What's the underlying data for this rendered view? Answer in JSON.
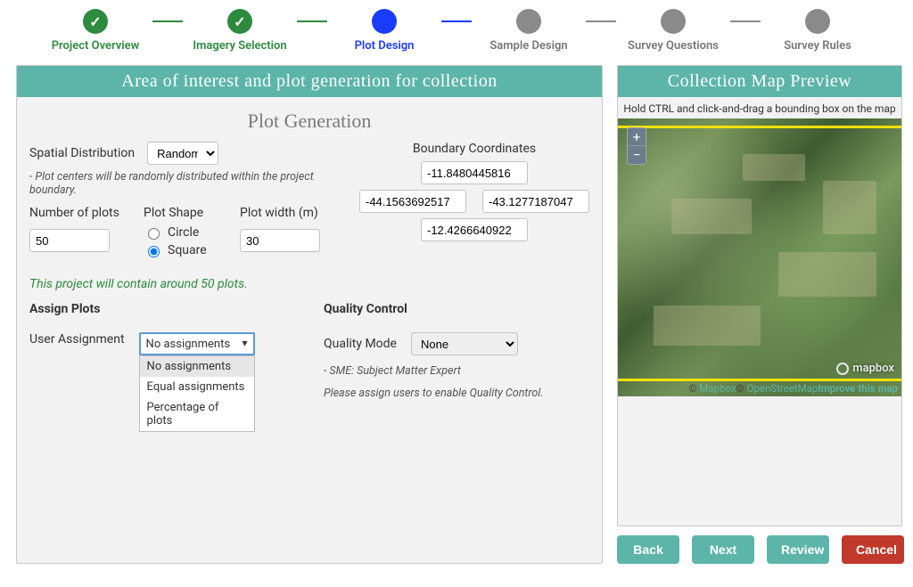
{
  "colors": {
    "done": "#2d8a3e",
    "active": "#1a3cff",
    "pending": "#8a8a8a",
    "teal": "#5cb5a8",
    "red": "#c0392b",
    "yellow": "#ffe100"
  },
  "stepper": {
    "steps": [
      {
        "label": "Project Overview",
        "state": "done"
      },
      {
        "label": "Imagery Selection",
        "state": "done"
      },
      {
        "label": "Plot Design",
        "state": "active"
      },
      {
        "label": "Sample Design",
        "state": "pending"
      },
      {
        "label": "Survey Questions",
        "state": "pending"
      },
      {
        "label": "Survey Rules",
        "state": "pending"
      }
    ]
  },
  "leftPanel": {
    "header": "Area of interest and plot generation for collection",
    "sectionTitle": "Plot Generation",
    "spatial": {
      "label": "Spatial Distribution",
      "value": "Random",
      "hint": "- Plot centers will be randomly distributed within the project boundary."
    },
    "numPlots": {
      "label": "Number of plots",
      "value": "50"
    },
    "plotShape": {
      "label": "Plot Shape",
      "options": [
        {
          "label": "Circle",
          "checked": false
        },
        {
          "label": "Square",
          "checked": true
        }
      ]
    },
    "plotWidth": {
      "label": "Plot width (m)",
      "value": "30"
    },
    "boundary": {
      "label": "Boundary Coordinates",
      "north": "-11.8480445816",
      "west": "-44.1563692517",
      "east": "-43.1277187047",
      "south": "-12.4266640922"
    },
    "plotCountHint": "This project will contain around 50 plots.",
    "assign": {
      "heading": "Assign Plots",
      "label": "User Assignment",
      "selected": "No assignments",
      "options": [
        "No assignments",
        "Equal assignments",
        "Percentage of plots"
      ],
      "highlightIndex": 0
    },
    "qc": {
      "heading": "Quality Control",
      "label": "Quality Mode",
      "value": "None",
      "sme": "- SME: Subject Matter Expert",
      "note": "Please assign users to enable Quality Control."
    }
  },
  "rightPanel": {
    "header": "Collection Map Preview",
    "hint": "Hold CTRL and click-and-drag a bounding box on the map",
    "zoom": {
      "in": "+",
      "out": "−"
    },
    "logo": "mapbox",
    "attribution": {
      "mapbox": "© Mapbox",
      "osm": "© OpenStreetMap",
      "improve": "Improve this map"
    },
    "yellowTop": 8,
    "yellowBottom": 292
  },
  "buttons": {
    "back": "Back",
    "next": "Next",
    "review": "Review",
    "cancel": "Cancel"
  }
}
